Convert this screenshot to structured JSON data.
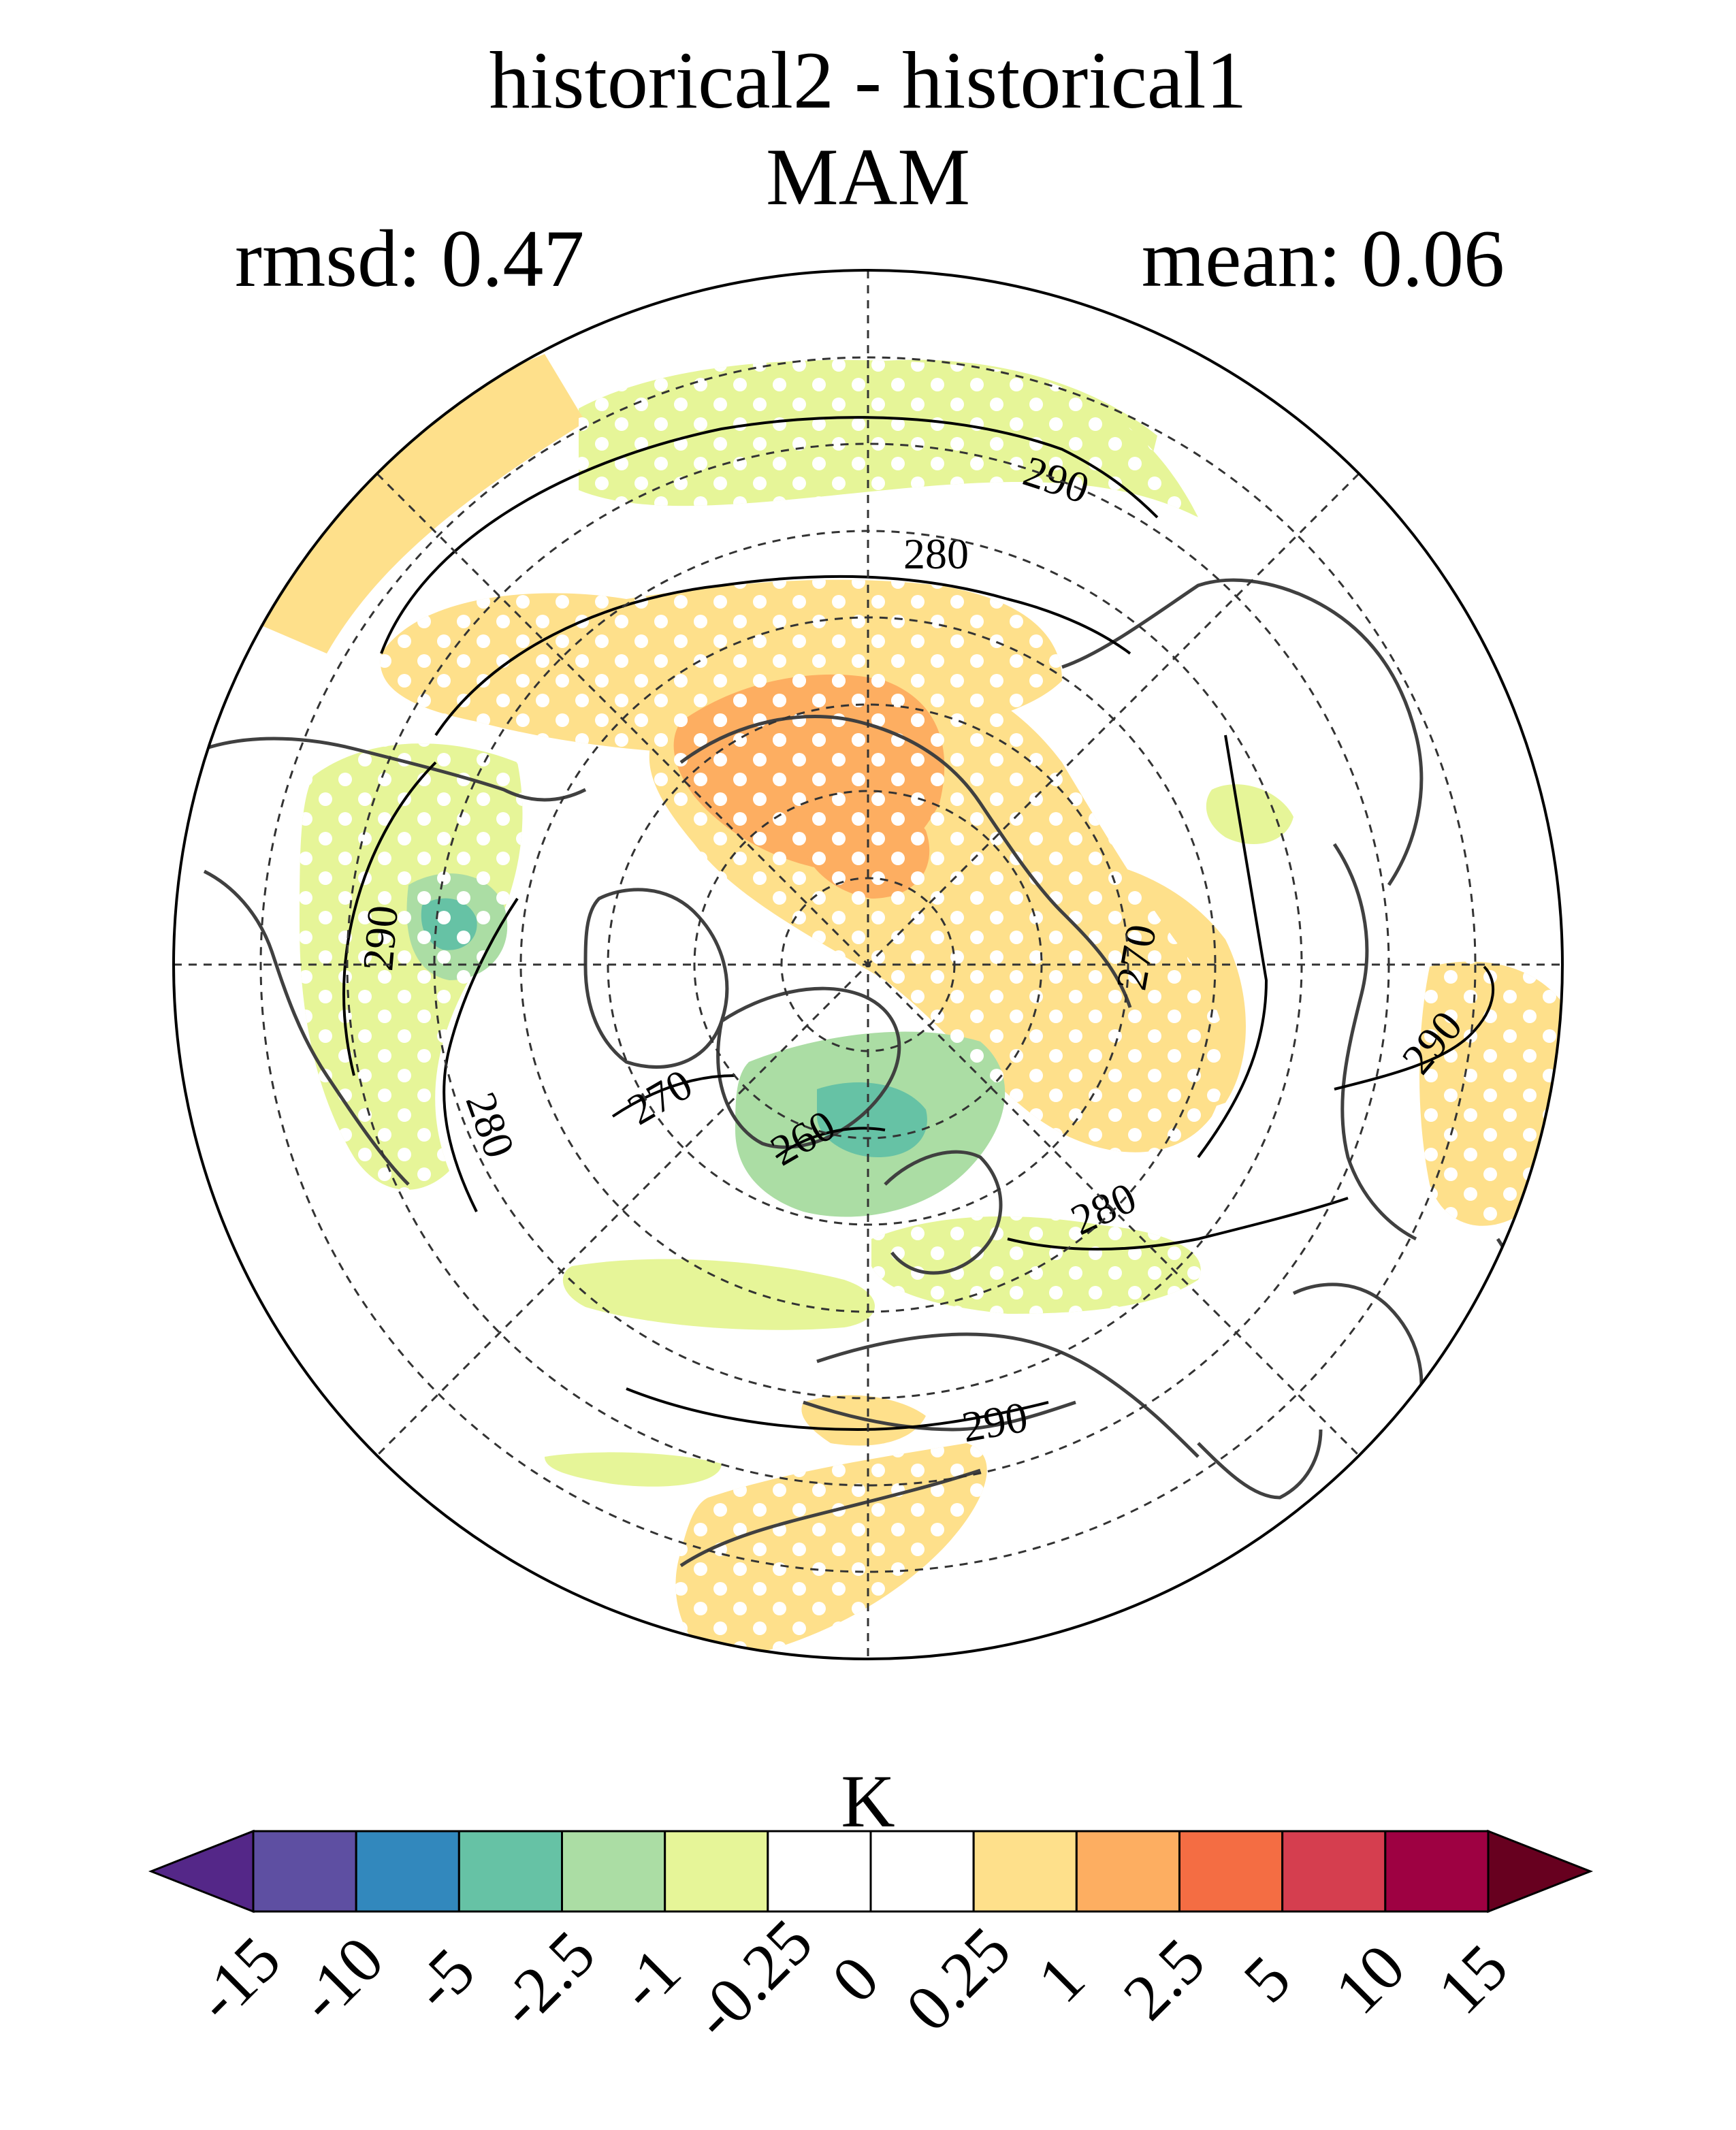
{
  "title": {
    "line1": "historical2 - historical1",
    "line2": "MAM",
    "left_stat": "rmsd: 0.47",
    "right_stat": "mean: 0.06"
  },
  "map": {
    "projection": "north polar stereographic",
    "contour_labels": [
      "290",
      "280",
      "290",
      "270",
      "290",
      "280",
      "270",
      "260",
      "280",
      "290"
    ],
    "stippling": "white dots mark significant differences"
  },
  "colorbar": {
    "unit": "K",
    "tick_labels": [
      "-15",
      "-10",
      "-5",
      "-2.5",
      "-1",
      "-0.25",
      "0",
      "0.25",
      "1",
      "2.5",
      "5",
      "10",
      "15"
    ],
    "colors": [
      "#542788",
      "#5e4fa2",
      "#3288bd",
      "#66c2a5",
      "#abdda4",
      "#e6f598",
      "#ffffff",
      "#ffffff",
      "#fee08b",
      "#fdae61",
      "#f46d43",
      "#d53e4f",
      "#9e0142",
      "#67001f"
    ]
  }
}
